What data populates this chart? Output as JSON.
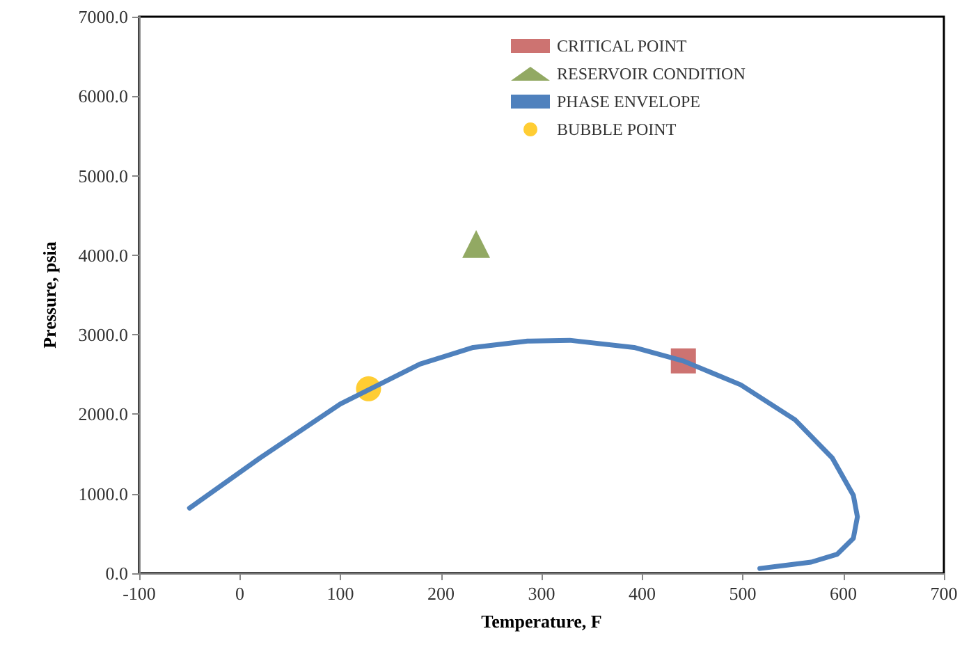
{
  "chart_data": {
    "type": "line",
    "xlabel": "Temperature, F",
    "ylabel": "Pressure, psia",
    "xlim": [
      -100,
      700
    ],
    "xticks": [
      -100,
      0,
      100,
      200,
      300,
      400,
      500,
      600,
      700
    ],
    "ylim": [
      0,
      7000
    ],
    "yticks": [
      {
        "value": 0,
        "label": "0.0"
      },
      {
        "value": 1000,
        "label": "1000.0"
      },
      {
        "value": 2000,
        "label": "2000.0"
      },
      {
        "value": 3000,
        "label": "3000.0"
      },
      {
        "value": 4000,
        "label": "4000.0"
      },
      {
        "value": 5000,
        "label": "5000.0"
      },
      {
        "value": 6000,
        "label": "6000.0"
      },
      {
        "value": 7000,
        "label": "7000.0"
      }
    ],
    "grid": false,
    "legend": "top",
    "series": [
      {
        "name": "CRITICAL POINT",
        "type": "scatter",
        "marker": "square",
        "color": "#c0504d",
        "x": [
          441
        ],
        "values": [
          2670
        ]
      },
      {
        "name": "RESERVOIR CONDITION",
        "type": "scatter",
        "marker": "triangle",
        "color": "#77933c",
        "x": [
          235
        ],
        "values": [
          4140
        ]
      },
      {
        "name": "PHASE ENVELOPE",
        "marker": "none",
        "color": "#4f81bd",
        "x": [
          -50,
          20,
          100,
          179,
          232,
          286,
          328,
          392,
          441,
          498,
          552,
          589,
          610,
          614,
          610,
          594,
          568,
          536,
          517
        ],
        "values": [
          820,
          1450,
          2130,
          2630,
          2840,
          2920,
          2930,
          2840,
          2670,
          2370,
          1930,
          1450,
          980,
          710,
          440,
          240,
          140,
          90,
          60
        ]
      },
      {
        "name": "BUBBLE POINT",
        "type": "scatter",
        "marker": "circle",
        "color": "#ffc000",
        "x": [
          128
        ],
        "values": [
          2320
        ]
      }
    ]
  }
}
